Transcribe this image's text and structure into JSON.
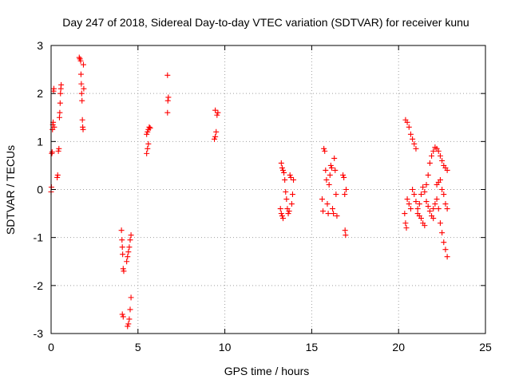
{
  "chart_data": {
    "type": "scatter",
    "title": "Day 247 of 2018, Sidereal Day-to-day VTEC variation (SDTVAR) for receiver kunu",
    "xlabel": "GPS time / hours",
    "ylabel": "SDTVAR / TECUs",
    "xlim": [
      0,
      25
    ],
    "ylim": [
      -3,
      3
    ],
    "xticks": [
      0,
      5,
      10,
      15,
      20,
      25
    ],
    "yticks": [
      -3,
      -2,
      -1,
      0,
      1,
      2,
      3
    ],
    "xtick_labels": [
      "0",
      "5",
      "10",
      "15",
      "20",
      "25"
    ],
    "ytick_labels": [
      "-3",
      "-2",
      "-1",
      "0",
      "1",
      "2",
      "3"
    ],
    "grid": true,
    "marker": "+",
    "color": "#ff0000",
    "series": [
      {
        "name": "SDTVAR",
        "points": [
          [
            0.0,
            -0.05
          ],
          [
            0.02,
            0.05
          ],
          [
            0.04,
            0.75
          ],
          [
            0.06,
            0.78
          ],
          [
            0.08,
            1.25
          ],
          [
            0.1,
            1.35
          ],
          [
            0.12,
            1.4
          ],
          [
            0.14,
            2.05
          ],
          [
            0.16,
            2.1
          ],
          [
            0.18,
            1.3
          ],
          [
            0.35,
            0.25
          ],
          [
            0.38,
            0.3
          ],
          [
            0.42,
            0.8
          ],
          [
            0.45,
            0.85
          ],
          [
            0.48,
            1.5
          ],
          [
            0.5,
            1.6
          ],
          [
            0.52,
            1.8
          ],
          [
            0.54,
            2.0
          ],
          [
            0.56,
            2.1
          ],
          [
            0.58,
            2.18
          ],
          [
            1.62,
            2.75
          ],
          [
            1.66,
            2.72
          ],
          [
            1.7,
            2.68
          ],
          [
            1.72,
            2.4
          ],
          [
            1.74,
            2.2
          ],
          [
            1.76,
            2.0
          ],
          [
            1.78,
            1.85
          ],
          [
            1.8,
            1.45
          ],
          [
            1.82,
            1.3
          ],
          [
            1.84,
            1.25
          ],
          [
            1.86,
            2.6
          ],
          [
            1.88,
            2.1
          ],
          [
            4.05,
            -0.85
          ],
          [
            4.08,
            -1.05
          ],
          [
            4.1,
            -1.2
          ],
          [
            4.12,
            -1.35
          ],
          [
            4.15,
            -1.65
          ],
          [
            4.18,
            -1.7
          ],
          [
            4.1,
            -2.6
          ],
          [
            4.15,
            -2.65
          ],
          [
            4.35,
            -1.5
          ],
          [
            4.4,
            -1.4
          ],
          [
            4.45,
            -1.3
          ],
          [
            4.5,
            -1.2
          ],
          [
            4.55,
            -1.05
          ],
          [
            4.6,
            -0.95
          ],
          [
            4.4,
            -2.85
          ],
          [
            4.45,
            -2.8
          ],
          [
            4.5,
            -2.7
          ],
          [
            4.55,
            -2.5
          ],
          [
            4.6,
            -2.25
          ],
          [
            5.5,
            0.75
          ],
          [
            5.55,
            0.85
          ],
          [
            5.6,
            0.95
          ],
          [
            5.5,
            1.15
          ],
          [
            5.55,
            1.2
          ],
          [
            5.6,
            1.25
          ],
          [
            5.65,
            1.3
          ],
          [
            5.7,
            1.28
          ],
          [
            6.7,
            1.6
          ],
          [
            6.72,
            1.85
          ],
          [
            6.75,
            1.92
          ],
          [
            6.7,
            2.38
          ],
          [
            9.4,
            1.05
          ],
          [
            9.45,
            1.1
          ],
          [
            9.5,
            1.2
          ],
          [
            9.55,
            1.55
          ],
          [
            9.6,
            1.6
          ],
          [
            9.45,
            1.65
          ],
          [
            13.2,
            -0.4
          ],
          [
            13.25,
            -0.5
          ],
          [
            13.3,
            -0.55
          ],
          [
            13.35,
            -0.6
          ],
          [
            13.25,
            0.55
          ],
          [
            13.3,
            0.45
          ],
          [
            13.35,
            0.4
          ],
          [
            13.4,
            0.35
          ],
          [
            13.45,
            0.2
          ],
          [
            13.5,
            -0.05
          ],
          [
            13.55,
            -0.2
          ],
          [
            13.6,
            -0.4
          ],
          [
            13.65,
            -0.5
          ],
          [
            13.7,
            -0.45
          ],
          [
            13.75,
            0.3
          ],
          [
            13.8,
            0.25
          ],
          [
            13.85,
            -0.3
          ],
          [
            13.9,
            -0.1
          ],
          [
            13.95,
            0.2
          ],
          [
            15.6,
            -0.2
          ],
          [
            15.65,
            -0.45
          ],
          [
            15.7,
            0.85
          ],
          [
            15.75,
            0.8
          ],
          [
            15.8,
            0.4
          ],
          [
            15.85,
            0.2
          ],
          [
            15.9,
            -0.3
          ],
          [
            15.95,
            -0.5
          ],
          [
            16.0,
            0.1
          ],
          [
            16.05,
            0.3
          ],
          [
            16.1,
            0.5
          ],
          [
            16.15,
            0.45
          ],
          [
            16.2,
            -0.4
          ],
          [
            16.25,
            -0.5
          ],
          [
            16.3,
            0.65
          ],
          [
            16.35,
            0.4
          ],
          [
            16.4,
            -0.1
          ],
          [
            16.45,
            -0.55
          ],
          [
            16.8,
            0.3
          ],
          [
            16.85,
            0.25
          ],
          [
            16.9,
            -0.1
          ],
          [
            16.92,
            -0.85
          ],
          [
            16.95,
            -0.95
          ],
          [
            16.98,
            0.0
          ],
          [
            20.35,
            -0.5
          ],
          [
            20.4,
            -0.7
          ],
          [
            20.45,
            -0.8
          ],
          [
            20.4,
            1.45
          ],
          [
            20.5,
            1.4
          ],
          [
            20.6,
            1.3
          ],
          [
            20.7,
            1.15
          ],
          [
            20.8,
            1.05
          ],
          [
            20.9,
            0.95
          ],
          [
            21.0,
            0.85
          ],
          [
            20.5,
            -0.2
          ],
          [
            20.6,
            -0.3
          ],
          [
            20.7,
            -0.4
          ],
          [
            20.8,
            0.0
          ],
          [
            20.9,
            -0.1
          ],
          [
            21.0,
            -0.25
          ],
          [
            21.1,
            -0.4
          ],
          [
            21.2,
            -0.55
          ],
          [
            21.3,
            -0.6
          ],
          [
            21.4,
            -0.7
          ],
          [
            21.5,
            -0.75
          ],
          [
            21.1,
            -0.5
          ],
          [
            21.2,
            -0.3
          ],
          [
            21.3,
            -0.1
          ],
          [
            21.4,
            0.05
          ],
          [
            21.5,
            -0.05
          ],
          [
            21.6,
            -0.25
          ],
          [
            21.7,
            -0.35
          ],
          [
            21.8,
            -0.45
          ],
          [
            21.9,
            -0.55
          ],
          [
            22.0,
            -0.6
          ],
          [
            21.6,
            0.1
          ],
          [
            21.7,
            0.3
          ],
          [
            21.8,
            0.55
          ],
          [
            21.9,
            0.7
          ],
          [
            22.0,
            0.8
          ],
          [
            22.1,
            0.88
          ],
          [
            22.2,
            0.85
          ],
          [
            22.3,
            0.8
          ],
          [
            22.4,
            0.7
          ],
          [
            22.5,
            0.6
          ],
          [
            22.6,
            0.5
          ],
          [
            22.7,
            0.45
          ],
          [
            22.8,
            0.4
          ],
          [
            22.0,
            -0.4
          ],
          [
            22.1,
            -0.3
          ],
          [
            22.2,
            -0.2
          ],
          [
            22.3,
            -0.4
          ],
          [
            22.4,
            -0.7
          ],
          [
            22.5,
            -0.9
          ],
          [
            22.6,
            -1.1
          ],
          [
            22.7,
            -1.25
          ],
          [
            22.8,
            -1.4
          ],
          [
            22.2,
            0.1
          ],
          [
            22.3,
            0.15
          ],
          [
            22.4,
            0.2
          ],
          [
            22.5,
            0.0
          ],
          [
            22.6,
            -0.1
          ],
          [
            22.7,
            -0.3
          ],
          [
            22.8,
            -0.4
          ]
        ]
      }
    ]
  }
}
